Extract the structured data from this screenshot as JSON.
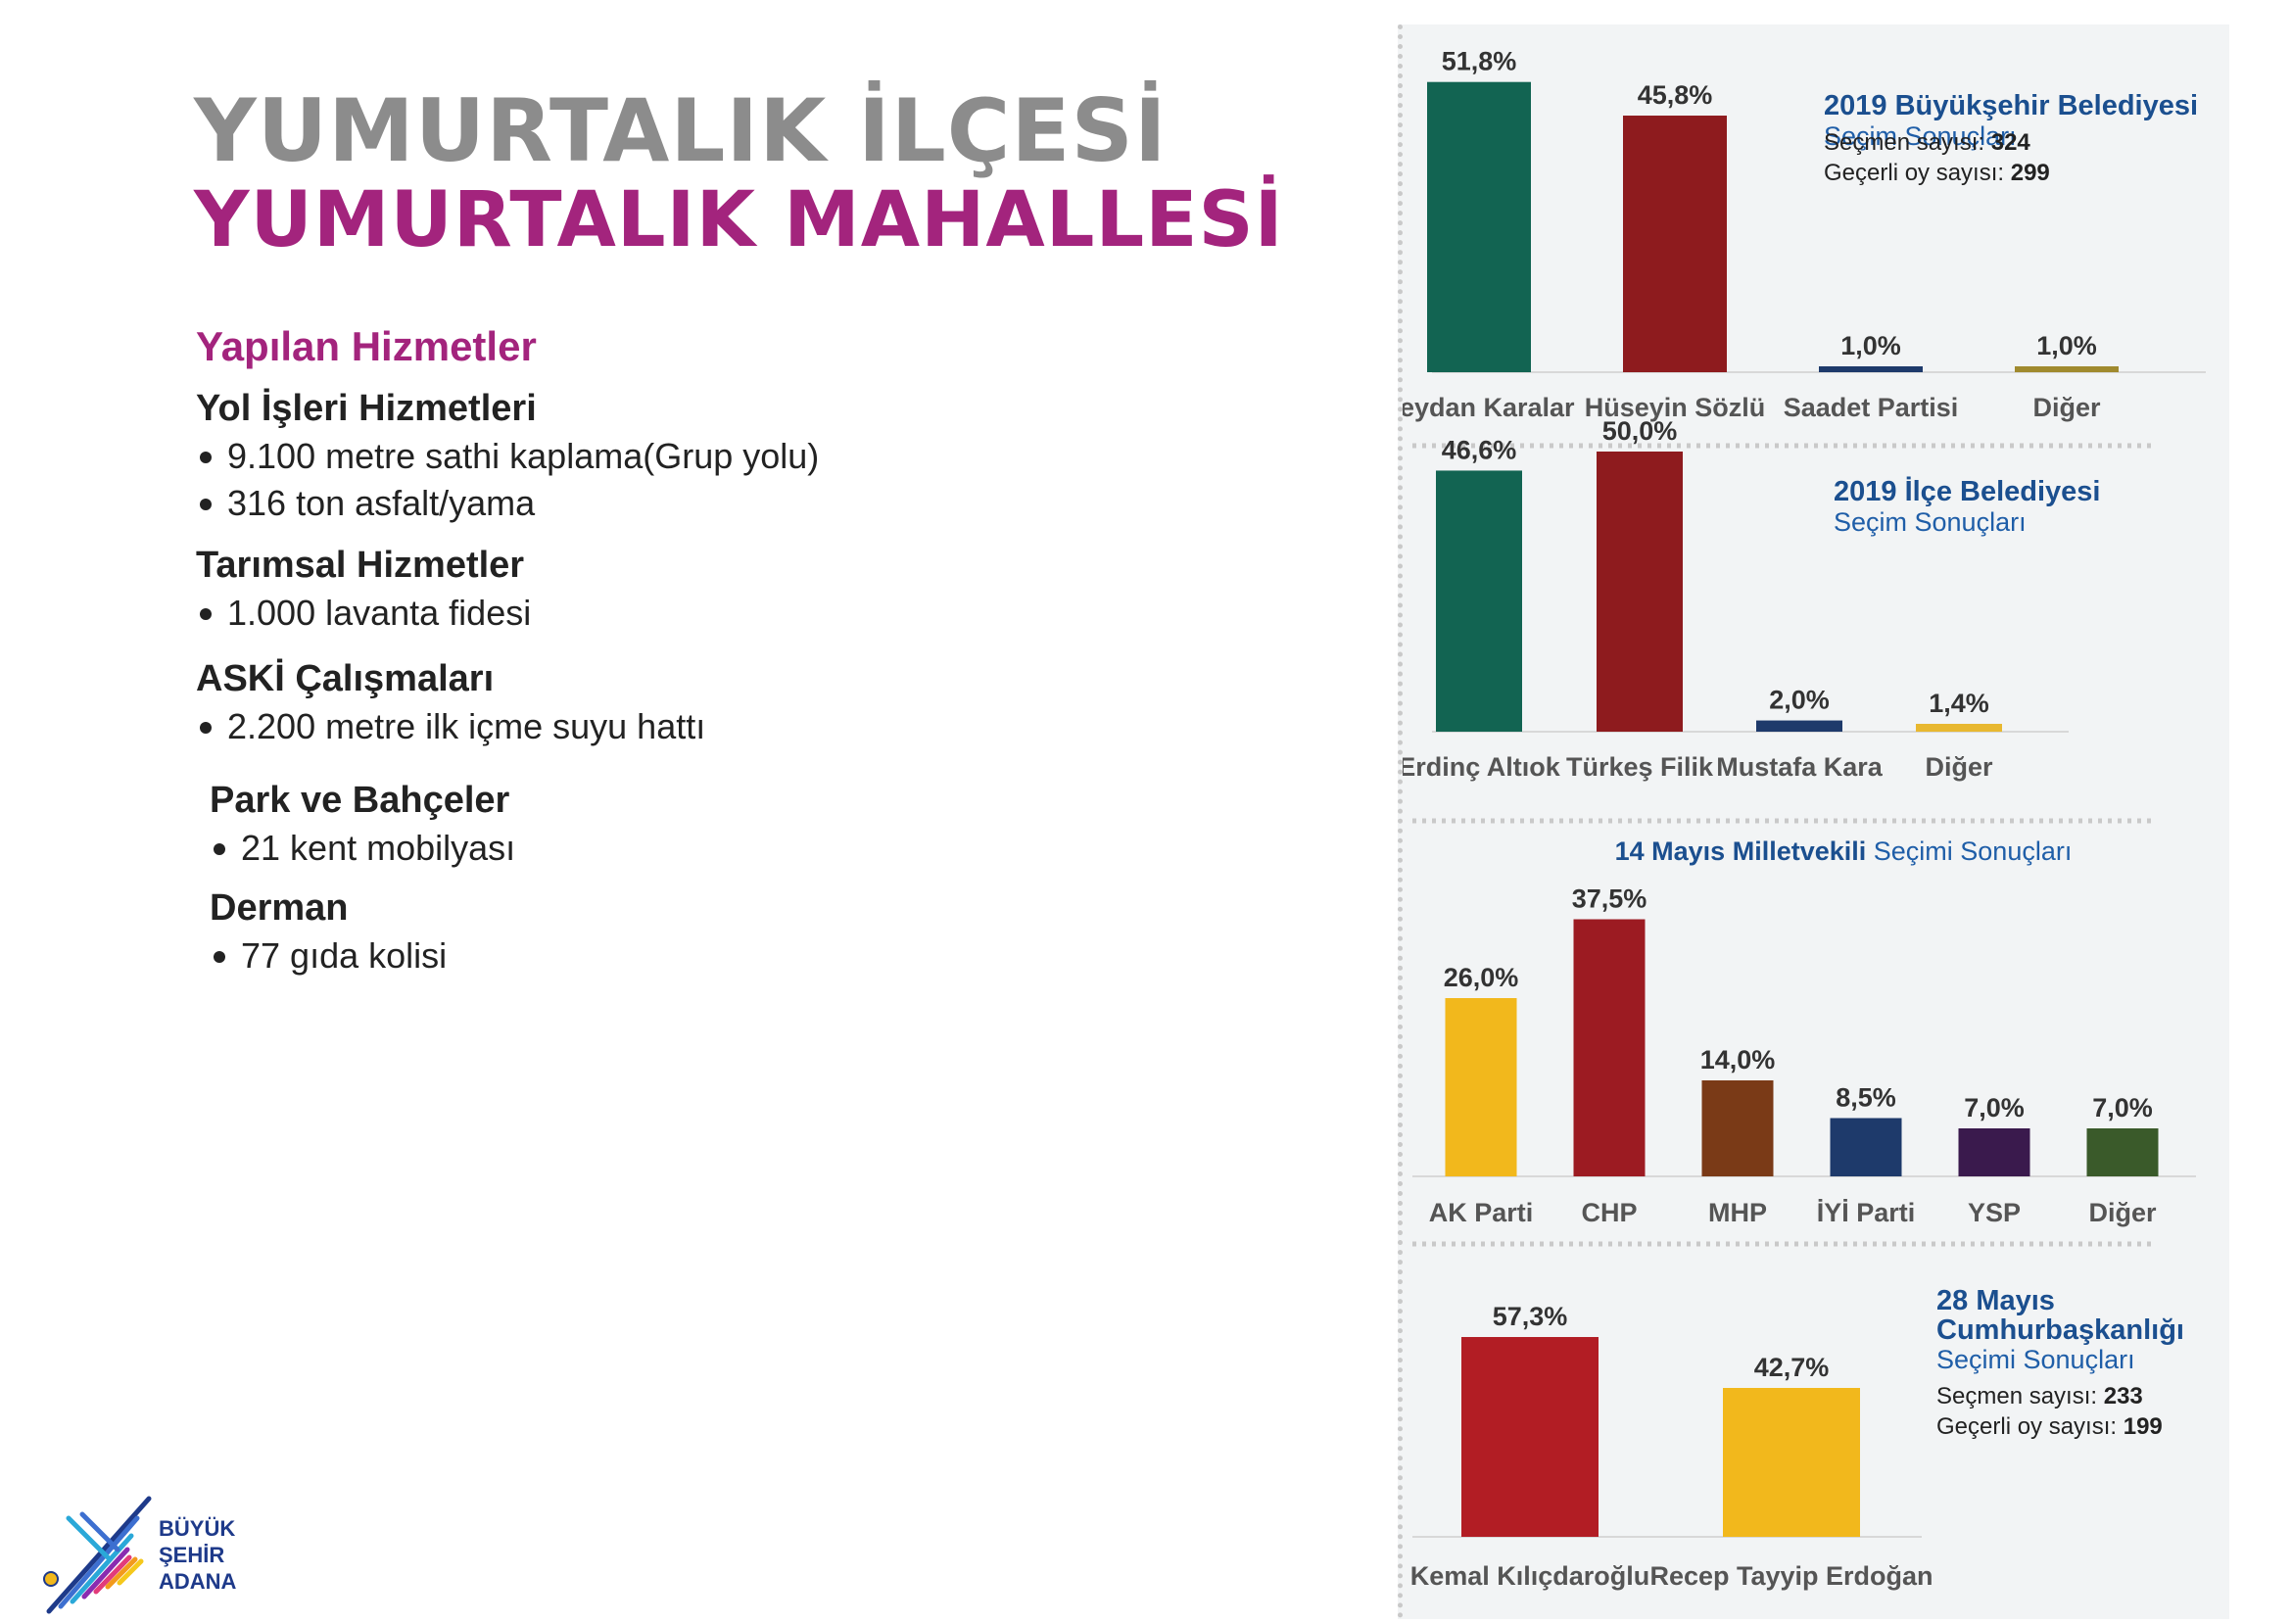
{
  "header": {
    "title_line1": "YUMURTALIK İLÇESİ",
    "title_line2": "YUMURTALIK MAHALLESİ"
  },
  "services": {
    "heading": "Yapılan Hizmetler",
    "sections": [
      {
        "title": "Yol İşleri Hizmetleri",
        "items": [
          "9.100 metre sathi kaplama(Grup yolu)",
          "316 ton asfalt/yama"
        ]
      },
      {
        "title": "Tarımsal Hizmetler",
        "items": [
          "1.000 lavanta fidesi"
        ]
      },
      {
        "title": "ASKİ Çalışmaları",
        "items": [
          "2.200 metre ilk içme suyu hattı"
        ]
      },
      {
        "title": "Park ve Bahçeler",
        "items": [
          "21 kent mobilyası"
        ]
      },
      {
        "title": "Derman",
        "items": [
          "77 gıda kolisi"
        ]
      }
    ]
  },
  "logo": {
    "line1": "BÜYÜK",
    "line2": "ŞEHİR",
    "line3": "ADANA"
  },
  "chart_data": [
    {
      "type": "bar",
      "title_bold": "2019 Büyükşehir Belediyesi",
      "title_rest": "Seçim Sonuçları",
      "info": [
        {
          "label": "Seçmen sayısı: ",
          "value": "324"
        },
        {
          "label": "Geçerli oy sayısı: ",
          "value": "299"
        }
      ],
      "categories": [
        "Zeydan Karalar",
        "Hüseyin Sözlü",
        "Saadet Partisi",
        "Diğer"
      ],
      "values": [
        51.8,
        45.8,
        1.0,
        1.0
      ],
      "labels": [
        "51,8%",
        "45,8%",
        "1,0%",
        "1,0%"
      ],
      "colors": [
        "#126452",
        "#8e1b1e",
        "#1e3a6b",
        "#a08a2e"
      ]
    },
    {
      "type": "bar",
      "title_bold": "2019 İlçe Belediyesi",
      "title_rest": "Seçim Sonuçları",
      "info": [],
      "categories": [
        "Erdinç Altıok",
        "Türkeş Filik",
        "Mustafa Kara",
        "Diğer"
      ],
      "values": [
        46.6,
        50.0,
        2.0,
        1.4
      ],
      "labels": [
        "46,6%",
        "50,0%",
        "2,0%",
        "1,4%"
      ],
      "colors": [
        "#126452",
        "#8e1b1e",
        "#1e3a6b",
        "#e8b830"
      ]
    },
    {
      "type": "bar",
      "title_bold": "14 Mayıs Milletvekili",
      "title_rest": " Seçimi Sonuçları",
      "info": [],
      "categories": [
        "AK Parti",
        "CHP",
        "MHP",
        "İYİ Parti",
        "YSP",
        "Diğer"
      ],
      "values": [
        26.0,
        37.5,
        14.0,
        8.5,
        7.0,
        7.0
      ],
      "labels": [
        "26,0%",
        "37,5%",
        "14,0%",
        "8,5%",
        "7,0%",
        "7,0%"
      ],
      "colors": [
        "#f2b81c",
        "#9c1b22",
        "#7a3a17",
        "#1e3a6b",
        "#3a1a4d",
        "#3a5a2a"
      ]
    },
    {
      "type": "bar",
      "title_bold": "28 Mayıs Cumhurbaşkanlığı",
      "title_rest": "Seçimi Sonuçları",
      "info": [
        {
          "label": "Seçmen sayısı: ",
          "value": "233"
        },
        {
          "label": "Geçerli oy sayısı: ",
          "value": "199"
        }
      ],
      "categories": [
        "Kemal Kılıçdaroğlu",
        "Recep Tayyip Erdoğan"
      ],
      "values": [
        57.3,
        42.7
      ],
      "labels": [
        "57,3%",
        "42,7%"
      ],
      "colors": [
        "#b21d24",
        "#f2b81c"
      ]
    }
  ]
}
